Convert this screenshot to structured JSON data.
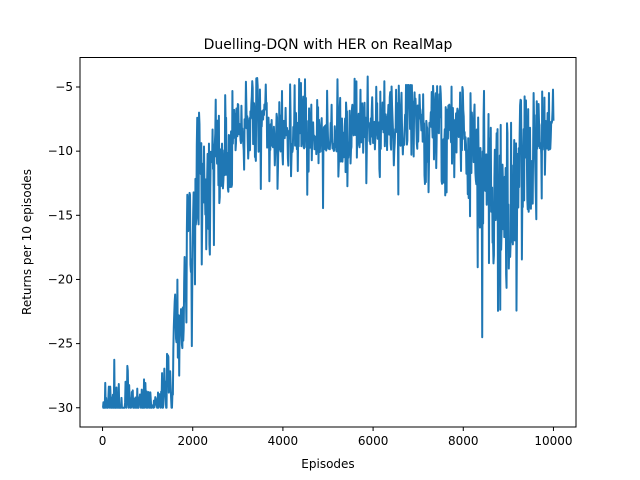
{
  "chart_data": {
    "type": "line",
    "title": "Duelling-DQN with HER on RealMap",
    "xlabel": "Episodes",
    "ylabel": "Returns per 10 episodes",
    "xlim": [
      -500,
      10500
    ],
    "ylim": [
      -31.5,
      -2.7
    ],
    "xticks": [
      0,
      2000,
      4000,
      6000,
      8000,
      10000
    ],
    "xtick_labels": [
      "0",
      "2000",
      "4000",
      "6000",
      "8000",
      "10000"
    ],
    "yticks": [
      -30,
      -25,
      -20,
      -15,
      -10,
      -5
    ],
    "ytick_labels": [
      "−30",
      "−25",
      "−20",
      "−15",
      "−10",
      "−5"
    ],
    "grid": false,
    "legend": "none",
    "line_color": "#1f77b4",
    "series": [
      {
        "sample_step": 10,
        "anchors": [
          [
            0,
            -30.0,
            1.5,
            0.04,
            -30.0,
            -27.0
          ],
          [
            100,
            -30.0,
            2.0,
            0.06,
            -30.0,
            -25.0
          ],
          [
            500,
            -30.0,
            1.8,
            0.05,
            -30.0,
            -25.0
          ],
          [
            1000,
            -30.0,
            1.6,
            0.04,
            -30.0,
            -25.5
          ],
          [
            1200,
            -30.0,
            0.4,
            0.01,
            -30.0,
            -28.5
          ],
          [
            1400,
            -29.0,
            2.0,
            0.0,
            -30.0,
            -25.5
          ],
          [
            1500,
            -27.0,
            2.5,
            0.0,
            -30.0,
            -21.5
          ],
          [
            1600,
            -25.0,
            3.0,
            0.0,
            -30.0,
            -14.5
          ],
          [
            1700,
            -24.0,
            3.0,
            0.0,
            -29.5,
            -17.0
          ],
          [
            1800,
            -22.0,
            3.0,
            0.0,
            -28.0,
            -17.0
          ],
          [
            1900,
            -19.0,
            3.5,
            0.0,
            -26.0,
            -12.5
          ],
          [
            2000,
            -16.0,
            4.0,
            0.0,
            -25.0,
            -11.0
          ],
          [
            2100,
            -14.0,
            4.0,
            0.0,
            -24.0,
            -7.0
          ],
          [
            2200,
            -13.0,
            3.5,
            0.0,
            -22.0,
            -7.0
          ],
          [
            2300,
            -12.0,
            3.5,
            0.0,
            -20.0,
            -6.0
          ],
          [
            2500,
            -10.0,
            3.0,
            0.0,
            -17.0,
            -6.0
          ],
          [
            2800,
            -9.5,
            2.5,
            0.0,
            -16.0,
            -5.5
          ],
          [
            3300,
            -8.5,
            2.2,
            0.0,
            -14.0,
            -4.3
          ],
          [
            4000,
            -8.0,
            2.0,
            0.0,
            -14.5,
            -4.3
          ],
          [
            5000,
            -8.0,
            2.0,
            0.0,
            -14.5,
            -4.5
          ],
          [
            5800,
            -8.0,
            2.2,
            0.0,
            -14.0,
            -4.1
          ],
          [
            6500,
            -8.0,
            2.0,
            0.0,
            -14.0,
            -4.8
          ],
          [
            7200,
            -8.0,
            2.0,
            0.0,
            -13.5,
            -4.9
          ],
          [
            8000,
            -8.5,
            2.2,
            0.0,
            -15.0,
            -5.0
          ],
          [
            8200,
            -10.0,
            3.0,
            0.0,
            -17.0,
            -5.5
          ],
          [
            8400,
            -14.0,
            4.0,
            0.0,
            -25.0,
            -5.0
          ],
          [
            8600,
            -12.0,
            3.5,
            0.0,
            -22.0,
            -6.0
          ],
          [
            8800,
            -11.0,
            3.5,
            0.0,
            -23.0,
            -7.0
          ],
          [
            8950,
            -16.0,
            5.0,
            0.0,
            -27.5,
            -8.0
          ],
          [
            9050,
            -15.0,
            4.5,
            0.0,
            -26.5,
            -7.0
          ],
          [
            9200,
            -12.0,
            3.5,
            0.0,
            -22.0,
            -6.0
          ],
          [
            9500,
            -11.0,
            3.5,
            0.0,
            -20.0,
            -5.5
          ],
          [
            10000,
            -8.0,
            2.0,
            0.0,
            -13.0,
            -5.2
          ]
        ]
      }
    ]
  }
}
